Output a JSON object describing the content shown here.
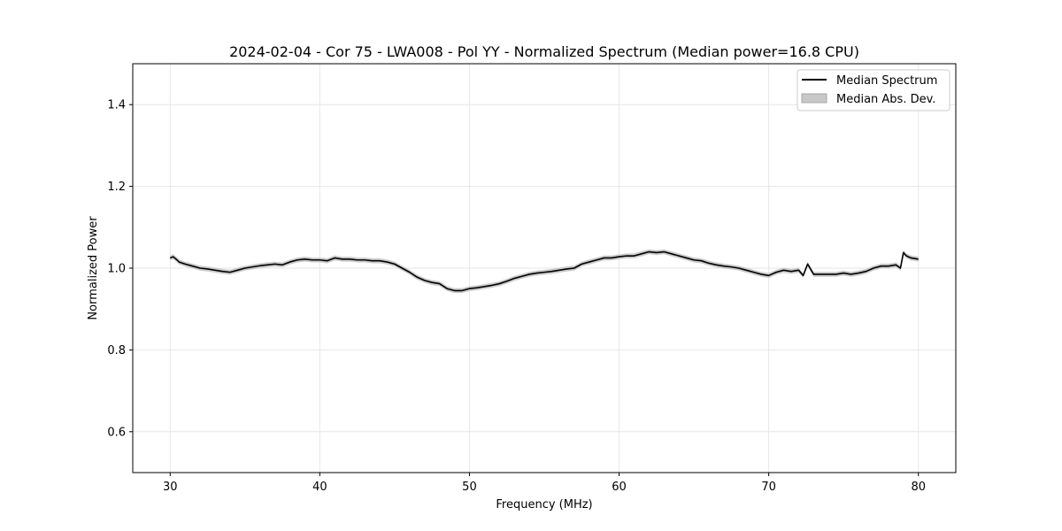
{
  "chart_data": {
    "type": "line",
    "title": "2024-02-04 - Cor 75 - LWA008 - Pol YY - Normalized Spectrum (Median power=16.8 CPU)",
    "xlabel": "Frequency (MHz)",
    "ylabel": "Normalized Power",
    "xlim": [
      27.5,
      82.5
    ],
    "ylim": [
      0.5,
      1.5
    ],
    "xticks": [
      30,
      40,
      50,
      60,
      70,
      80
    ],
    "xtick_labels": [
      "30",
      "40",
      "50",
      "60",
      "70",
      "80"
    ],
    "yticks": [
      0.6,
      0.8,
      1.0,
      1.2,
      1.4
    ],
    "ytick_labels": [
      "0.6",
      "0.8",
      "1.0",
      "1.2",
      "1.4"
    ],
    "grid": true,
    "legend_position": "top-right",
    "legend": [
      "Median Spectrum",
      "Median Abs. Dev."
    ],
    "series": [
      {
        "name": "Median Spectrum",
        "color": "#000000",
        "x": [
          30.0,
          30.2,
          30.4,
          30.6,
          31.0,
          31.5,
          32.0,
          32.5,
          33.0,
          33.5,
          34.0,
          34.5,
          35.0,
          35.5,
          36.0,
          36.5,
          37.0,
          37.5,
          38.0,
          38.5,
          39.0,
          39.5,
          40.0,
          40.5,
          41.0,
          41.5,
          42.0,
          42.5,
          43.0,
          43.5,
          44.0,
          44.5,
          45.0,
          45.5,
          46.0,
          46.5,
          47.0,
          47.5,
          48.0,
          48.5,
          49.0,
          49.5,
          50.0,
          50.5,
          51.0,
          51.5,
          52.0,
          52.5,
          53.0,
          53.5,
          54.0,
          54.5,
          55.0,
          55.5,
          56.0,
          56.5,
          57.0,
          57.5,
          58.0,
          58.5,
          59.0,
          59.5,
          60.0,
          60.5,
          61.0,
          61.5,
          62.0,
          62.5,
          63.0,
          63.5,
          64.0,
          64.5,
          65.0,
          65.5,
          66.0,
          66.5,
          67.0,
          67.5,
          68.0,
          68.5,
          69.0,
          69.5,
          70.0,
          70.5,
          71.0,
          71.5,
          72.0,
          72.3,
          72.6,
          73.0,
          73.5,
          74.0,
          74.5,
          75.0,
          75.5,
          76.0,
          76.5,
          77.0,
          77.5,
          78.0,
          78.5,
          78.8,
          79.0,
          79.2,
          79.5,
          80.0
        ],
        "values": [
          1.025,
          1.028,
          1.022,
          1.015,
          1.01,
          1.005,
          1.0,
          0.998,
          0.995,
          0.992,
          0.99,
          0.995,
          1.0,
          1.003,
          1.006,
          1.008,
          1.01,
          1.008,
          1.015,
          1.02,
          1.022,
          1.02,
          1.02,
          1.018,
          1.025,
          1.022,
          1.022,
          1.02,
          1.02,
          1.018,
          1.018,
          1.015,
          1.01,
          1.0,
          0.99,
          0.978,
          0.97,
          0.965,
          0.962,
          0.95,
          0.945,
          0.945,
          0.95,
          0.952,
          0.955,
          0.958,
          0.962,
          0.968,
          0.975,
          0.98,
          0.985,
          0.988,
          0.99,
          0.992,
          0.995,
          0.998,
          1.0,
          1.01,
          1.015,
          1.02,
          1.025,
          1.025,
          1.028,
          1.03,
          1.03,
          1.035,
          1.04,
          1.038,
          1.04,
          1.035,
          1.03,
          1.025,
          1.02,
          1.018,
          1.012,
          1.008,
          1.005,
          1.003,
          1.0,
          0.995,
          0.99,
          0.985,
          0.982,
          0.99,
          0.995,
          0.992,
          0.995,
          0.982,
          1.01,
          0.985,
          0.985,
          0.985,
          0.985,
          0.988,
          0.985,
          0.988,
          0.992,
          1.0,
          1.005,
          1.005,
          1.008,
          1.0,
          1.038,
          1.03,
          1.025,
          1.022
        ]
      },
      {
        "name": "Median Abs. Dev.",
        "color": "#c8c8c8",
        "type": "band",
        "halfwidth": 0.006
      }
    ]
  }
}
